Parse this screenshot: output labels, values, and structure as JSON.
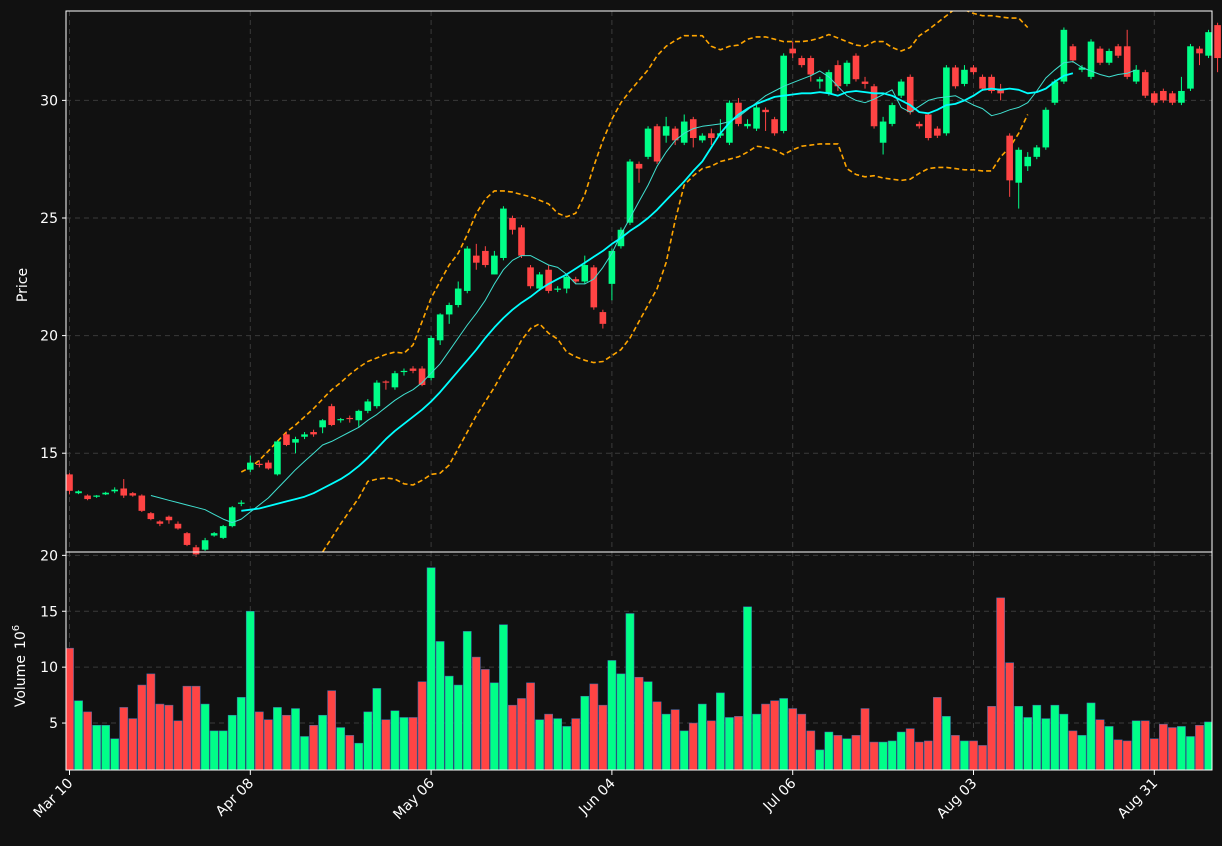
{
  "colors": {
    "background": "#111111",
    "up": "#00ff88",
    "down": "#ff4444",
    "ma_fast": "#40e0d0",
    "ma_slow": "#00ffff",
    "bollinger": "#ffa500",
    "grid": "#3a3a3a",
    "axis": "#ffffff"
  },
  "chart_data": [
    {
      "type": "candlestick",
      "ylabel": "Price",
      "ylim": [
        10.8,
        33.8
      ],
      "yticks": [
        15,
        20,
        25,
        30
      ],
      "x_tick_labels": [
        "Mar 10",
        "Apr 08",
        "May 06",
        "Jun 04",
        "Jul 06",
        "Aug 03",
        "Aug 31"
      ],
      "x_tick_index": [
        0,
        20,
        40,
        60,
        80,
        100,
        120
      ],
      "grid": true,
      "candles": [
        [
          14.1,
          13.4,
          14.15,
          13.25
        ],
        [
          13.3,
          13.38,
          13.42,
          13.26
        ],
        [
          13.2,
          13.05,
          13.25,
          13.0
        ],
        [
          13.15,
          13.2,
          13.22,
          13.1
        ],
        [
          13.25,
          13.32,
          13.36,
          13.22
        ],
        [
          13.38,
          13.45,
          13.55,
          13.3
        ],
        [
          13.5,
          13.2,
          13.9,
          13.1
        ],
        [
          13.3,
          13.2,
          13.35,
          13.15
        ],
        [
          13.2,
          12.55,
          13.25,
          12.5
        ],
        [
          12.45,
          12.2,
          12.5,
          12.15
        ],
        [
          12.1,
          12.0,
          12.15,
          11.9
        ],
        [
          12.3,
          12.15,
          12.35,
          12.0
        ],
        [
          12.0,
          11.8,
          12.1,
          11.75
        ],
        [
          11.6,
          11.1,
          11.65,
          11.05
        ],
        [
          11.0,
          10.7,
          11.1,
          10.6
        ],
        [
          10.9,
          11.3,
          11.4,
          10.85
        ],
        [
          11.5,
          11.6,
          11.65,
          11.45
        ],
        [
          11.4,
          11.9,
          11.95,
          11.35
        ],
        [
          11.9,
          12.7,
          12.75,
          11.85
        ],
        [
          12.85,
          12.9,
          13.0,
          12.75
        ],
        [
          14.3,
          14.6,
          14.9,
          14.2
        ],
        [
          14.55,
          14.5,
          14.7,
          14.4
        ],
        [
          14.6,
          14.35,
          14.7,
          14.3
        ],
        [
          14.1,
          15.5,
          15.55,
          14.05
        ],
        [
          15.8,
          15.35,
          15.9,
          15.3
        ],
        [
          15.45,
          15.6,
          15.7,
          15.0
        ],
        [
          15.7,
          15.8,
          15.9,
          15.6
        ],
        [
          15.9,
          15.8,
          16.0,
          15.7
        ],
        [
          16.1,
          16.4,
          16.45,
          15.85
        ],
        [
          17.0,
          16.2,
          17.1,
          16.15
        ],
        [
          16.4,
          16.45,
          16.5,
          16.3
        ],
        [
          16.5,
          16.45,
          16.6,
          16.3
        ],
        [
          16.4,
          16.8,
          16.85,
          16.1
        ],
        [
          16.8,
          17.2,
          17.3,
          16.7
        ],
        [
          17.0,
          18.0,
          18.1,
          16.9
        ],
        [
          18.05,
          18.0,
          18.1,
          17.7
        ],
        [
          17.8,
          18.4,
          18.5,
          17.7
        ],
        [
          18.45,
          18.5,
          18.6,
          18.3
        ],
        [
          18.6,
          18.5,
          18.7,
          18.4
        ],
        [
          18.6,
          17.9,
          18.7,
          17.85
        ],
        [
          18.2,
          19.9,
          20.0,
          18.1
        ],
        [
          19.8,
          20.9,
          20.95,
          19.6
        ],
        [
          20.9,
          21.3,
          21.4,
          20.5
        ],
        [
          21.3,
          22.0,
          22.3,
          21.2
        ],
        [
          21.9,
          23.7,
          23.8,
          21.8
        ],
        [
          23.4,
          23.1,
          23.9,
          22.8
        ],
        [
          23.6,
          23.0,
          23.8,
          22.9
        ],
        [
          22.6,
          23.4,
          23.6,
          22.6
        ],
        [
          23.3,
          25.4,
          25.5,
          23.2
        ],
        [
          25.0,
          24.5,
          25.1,
          24.3
        ],
        [
          24.6,
          23.4,
          24.7,
          23.3
        ],
        [
          22.9,
          22.1,
          23.0,
          22.0
        ],
        [
          22.0,
          22.6,
          22.7,
          21.9
        ],
        [
          22.8,
          21.9,
          23.0,
          21.8
        ],
        [
          21.95,
          22.0,
          22.1,
          21.85
        ],
        [
          22.0,
          22.5,
          22.6,
          21.8
        ],
        [
          22.4,
          22.3,
          22.5,
          22.2
        ],
        [
          22.3,
          23.0,
          23.4,
          22.2
        ],
        [
          22.9,
          21.2,
          23.0,
          21.1
        ],
        [
          21.0,
          20.5,
          21.1,
          20.3
        ],
        [
          22.2,
          23.6,
          23.7,
          21.5
        ],
        [
          23.8,
          24.5,
          24.6,
          23.7
        ],
        [
          24.8,
          27.4,
          27.5,
          24.7
        ],
        [
          27.3,
          27.1,
          27.4,
          26.5
        ],
        [
          27.6,
          28.8,
          28.9,
          27.5
        ],
        [
          28.9,
          27.4,
          29.0,
          27.3
        ],
        [
          28.5,
          28.9,
          29.3,
          28.2
        ],
        [
          28.8,
          28.3,
          28.9,
          28.1
        ],
        [
          28.2,
          29.1,
          29.4,
          28.1
        ],
        [
          29.2,
          28.4,
          29.3,
          28.0
        ],
        [
          28.3,
          28.5,
          28.6,
          28.2
        ],
        [
          28.6,
          28.4,
          28.8,
          28.1
        ],
        [
          28.5,
          28.6,
          29.2,
          28.4
        ],
        [
          28.2,
          29.9,
          30.0,
          28.1
        ],
        [
          29.9,
          29.0,
          30.1,
          28.9
        ],
        [
          28.9,
          29.0,
          29.2,
          28.8
        ],
        [
          28.8,
          29.7,
          29.8,
          28.7
        ],
        [
          29.6,
          29.5,
          29.7,
          28.7
        ],
        [
          29.2,
          28.6,
          29.3,
          28.5
        ],
        [
          28.7,
          31.9,
          32.0,
          28.6
        ],
        [
          32.2,
          32.0,
          32.5,
          31.8
        ],
        [
          31.8,
          31.5,
          31.9,
          31.4
        ],
        [
          31.8,
          31.1,
          31.9,
          30.8
        ],
        [
          30.8,
          30.9,
          31.0,
          30.5
        ],
        [
          30.3,
          31.2,
          31.3,
          30.2
        ],
        [
          31.5,
          30.6,
          31.7,
          30.4
        ],
        [
          30.7,
          31.6,
          31.7,
          30.6
        ],
        [
          31.9,
          30.9,
          32.0,
          30.8
        ],
        [
          30.8,
          30.7,
          31.0,
          30.5
        ],
        [
          30.6,
          28.9,
          30.7,
          28.8
        ],
        [
          28.2,
          29.1,
          29.3,
          27.7
        ],
        [
          29.0,
          29.8,
          29.9,
          28.9
        ],
        [
          30.2,
          30.8,
          30.9,
          30.1
        ],
        [
          31.0,
          29.5,
          31.1,
          29.4
        ],
        [
          29.0,
          28.9,
          29.1,
          28.8
        ],
        [
          29.4,
          28.4,
          29.5,
          28.3
        ],
        [
          28.8,
          28.5,
          28.9,
          28.4
        ],
        [
          28.6,
          31.4,
          31.5,
          28.5
        ],
        [
          31.4,
          30.6,
          31.5,
          30.5
        ],
        [
          30.7,
          31.3,
          31.5,
          30.6
        ],
        [
          31.4,
          31.2,
          31.5,
          31.1
        ],
        [
          31.0,
          30.5,
          31.1,
          30.4
        ],
        [
          31.0,
          30.4,
          31.1,
          30.3
        ],
        [
          30.5,
          30.3,
          30.7,
          30.0
        ],
        [
          28.5,
          26.6,
          28.6,
          25.9
        ],
        [
          26.5,
          27.9,
          28.0,
          25.4
        ],
        [
          27.2,
          27.6,
          27.8,
          27.0
        ],
        [
          27.6,
          28.0,
          28.1,
          27.5
        ],
        [
          28.0,
          29.6,
          29.7,
          27.9
        ],
        [
          29.9,
          30.8,
          30.9,
          29.8
        ],
        [
          30.8,
          33.0,
          33.1,
          30.7
        ],
        [
          32.3,
          31.7,
          32.4,
          31.6
        ],
        [
          31.3,
          31.4,
          31.5,
          31.2
        ],
        [
          31.0,
          32.5,
          32.6,
          30.9
        ],
        [
          32.2,
          31.6,
          32.3,
          31.5
        ],
        [
          31.6,
          32.1,
          32.2,
          31.5
        ],
        [
          32.3,
          31.9,
          32.4,
          31.8
        ],
        [
          32.3,
          31.0,
          33.0,
          30.9
        ],
        [
          30.8,
          31.3,
          31.5,
          30.7
        ],
        [
          31.2,
          30.2,
          31.3,
          30.1
        ],
        [
          30.3,
          29.9,
          30.4,
          29.8
        ],
        [
          30.4,
          30.0,
          30.5,
          29.9
        ],
        [
          30.3,
          29.9,
          30.4,
          29.8
        ],
        [
          29.9,
          30.4,
          31.0,
          29.8
        ],
        [
          30.5,
          32.3,
          32.4,
          30.4
        ],
        [
          32.2,
          32.0,
          32.3,
          31.5
        ],
        [
          31.9,
          32.9,
          33.0,
          31.8
        ],
        [
          33.2,
          31.8,
          33.3,
          31.2
        ]
      ],
      "ma_fast_start_index": 9,
      "ma_fast": [
        13.2,
        13.1,
        13.0,
        12.9,
        12.8,
        12.7,
        12.6,
        12.4,
        12.2,
        12.05,
        12.2,
        12.5,
        12.8,
        13.1,
        13.5,
        13.9,
        14.3,
        14.65,
        15.0,
        15.35,
        15.5,
        15.7,
        15.9,
        16.1,
        16.4,
        16.65,
        16.95,
        17.25,
        17.5,
        17.7,
        18.0,
        18.4,
        18.8,
        19.35,
        19.9,
        20.45,
        20.95,
        21.5,
        22.2,
        22.8,
        23.2,
        23.4,
        23.4,
        23.2,
        23.0,
        22.9,
        22.6,
        22.2,
        22.2,
        22.4,
        22.9,
        23.5,
        24.3,
        25.0,
        25.7,
        26.4,
        27.2,
        27.8,
        28.3,
        28.6,
        28.8,
        28.9,
        28.95,
        29.0,
        29.1,
        29.3,
        29.6,
        29.9,
        30.2,
        30.4,
        30.6,
        30.75,
        30.9,
        31.05,
        31.25,
        31.0,
        30.6,
        30.2,
        30.0,
        29.9,
        30.05,
        30.25,
        30.45,
        29.7,
        29.5,
        29.75,
        30.0,
        30.1,
        30.15,
        30.2,
        30.0,
        29.8,
        29.65,
        29.35,
        29.45,
        29.6,
        29.7,
        29.9,
        30.4,
        30.95,
        31.3,
        31.6,
        31.65,
        31.4,
        31.25,
        31.1,
        31.0,
        31.1,
        31.15,
        31.3
      ],
      "ma_slow_start_index": 19,
      "ma_slow": [
        12.55,
        12.6,
        12.65,
        12.75,
        12.85,
        12.95,
        13.05,
        13.15,
        13.3,
        13.5,
        13.7,
        13.9,
        14.15,
        14.45,
        14.8,
        15.2,
        15.6,
        15.95,
        16.25,
        16.55,
        16.85,
        17.2,
        17.6,
        18.05,
        18.5,
        18.95,
        19.4,
        19.9,
        20.35,
        20.75,
        21.1,
        21.4,
        21.65,
        21.95,
        22.2,
        22.4,
        22.6,
        22.85,
        23.1,
        23.35,
        23.6,
        23.9,
        24.15,
        24.45,
        24.7,
        25.0,
        25.35,
        25.75,
        26.15,
        26.55,
        27.0,
        27.4,
        28.0,
        28.6,
        29.05,
        29.4,
        29.65,
        29.85,
        30.0,
        30.15,
        30.2,
        30.25,
        30.3,
        30.3,
        30.35,
        30.3,
        30.2,
        30.35,
        30.4,
        30.35,
        30.3,
        30.3,
        30.2,
        30.0,
        29.8,
        29.5,
        29.45,
        29.6,
        29.8,
        29.85,
        30.0,
        30.2,
        30.45,
        30.5,
        30.45,
        30.5,
        30.45,
        30.3,
        30.35,
        30.5,
        30.8,
        31.05,
        31.15
      ],
      "bb_start_index": 19,
      "bb_upper": [
        14.2,
        14.4,
        14.7,
        15.1,
        15.5,
        15.9,
        16.2,
        16.55,
        16.9,
        17.3,
        17.7,
        18.0,
        18.35,
        18.65,
        18.9,
        19.05,
        19.2,
        19.3,
        19.25,
        19.6,
        20.6,
        21.6,
        22.3,
        23.0,
        23.5,
        24.3,
        25.2,
        25.8,
        26.15,
        26.15,
        26.1,
        26.0,
        25.9,
        25.75,
        25.6,
        25.2,
        25.05,
        25.2,
        26.0,
        27.2,
        28.3,
        29.2,
        29.9,
        30.4,
        30.85,
        31.3,
        31.9,
        32.3,
        32.55,
        32.75,
        32.75,
        32.75,
        32.3,
        32.15,
        32.3,
        32.35,
        32.6,
        32.7,
        32.7,
        32.6,
        32.5,
        32.5,
        32.5,
        32.55,
        32.65,
        32.8,
        32.65,
        32.5,
        32.35,
        32.3,
        32.5,
        32.5,
        32.25,
        32.1,
        32.25,
        32.75,
        33.0,
        33.3,
        33.6,
        33.9,
        33.85,
        33.7,
        33.6,
        33.6,
        33.55,
        33.5,
        33.5,
        33.1
      ],
      "bb_lower": [
        10.8,
        10.7,
        10.55,
        10.4,
        10.35,
        10.3,
        10.2,
        10.25,
        10.45,
        10.8,
        11.4,
        12.0,
        12.55,
        13.1,
        13.8,
        13.9,
        13.95,
        13.9,
        13.7,
        13.65,
        13.85,
        14.1,
        14.15,
        14.5,
        15.2,
        15.9,
        16.6,
        17.2,
        17.8,
        18.5,
        19.1,
        19.8,
        20.3,
        20.5,
        20.1,
        19.85,
        19.3,
        19.1,
        18.95,
        18.85,
        18.9,
        19.15,
        19.4,
        19.9,
        20.6,
        21.3,
        22.0,
        23.1,
        24.9,
        26.4,
        26.8,
        27.1,
        27.2,
        27.4,
        27.5,
        27.6,
        27.8,
        28.05,
        28.0,
        27.9,
        27.7,
        27.9,
        28.05,
        28.1,
        28.15,
        28.15,
        28.15,
        27.1,
        26.85,
        26.75,
        26.8,
        26.7,
        26.65,
        26.6,
        26.65,
        26.9,
        27.1,
        27.15,
        27.15,
        27.1,
        27.05,
        27.05,
        27.0,
        27.0,
        27.6,
        28.0,
        28.6,
        29.4
      ]
    },
    {
      "type": "bar",
      "ylabel": "Volume",
      "ylabel_unit": "10",
      "ylabel_unit_exp": "6",
      "ylim": [
        0.8,
        20.3
      ],
      "yticks": [
        5,
        10,
        15,
        20
      ],
      "grid": true,
      "values": [
        11.7,
        7.0,
        6.0,
        4.8,
        4.8,
        3.6,
        6.4,
        5.4,
        8.4,
        9.4,
        6.7,
        6.6,
        5.2,
        8.3,
        8.3,
        6.7,
        4.3,
        4.3,
        5.7,
        7.3,
        15.0,
        6.0,
        5.3,
        6.4,
        5.7,
        6.3,
        3.8,
        4.8,
        5.7,
        7.9,
        4.6,
        3.9,
        3.2,
        6.0,
        8.1,
        5.3,
        6.1,
        5.5,
        5.5,
        8.7,
        18.9,
        12.3,
        9.2,
        8.4,
        13.2,
        10.9,
        9.8,
        8.6,
        13.8,
        6.6,
        7.2,
        8.6,
        5.3,
        5.8,
        5.4,
        4.7,
        5.4,
        7.4,
        8.5,
        6.6,
        10.6,
        9.4,
        14.8,
        9.1,
        8.7,
        6.9,
        5.8,
        6.2,
        4.3,
        5.0,
        6.7,
        5.2,
        7.7,
        5.5,
        5.6,
        15.4,
        5.8,
        6.7,
        7.0,
        7.2,
        6.3,
        5.8,
        4.3,
        2.6,
        4.2,
        3.9,
        3.6,
        3.9,
        6.3,
        3.3,
        3.3,
        3.4,
        4.2,
        4.5,
        3.3,
        3.4,
        7.3,
        5.6,
        3.9,
        3.4,
        3.4,
        3.0,
        6.5,
        16.2,
        10.4,
        6.5,
        5.5,
        6.6,
        5.4,
        6.6,
        5.8,
        4.3,
        3.9,
        6.8,
        5.3,
        4.7,
        3.5,
        3.4,
        5.2,
        5.2,
        3.6,
        4.9,
        4.6,
        4.7,
        3.8,
        4.8,
        5.1
      ]
    }
  ]
}
